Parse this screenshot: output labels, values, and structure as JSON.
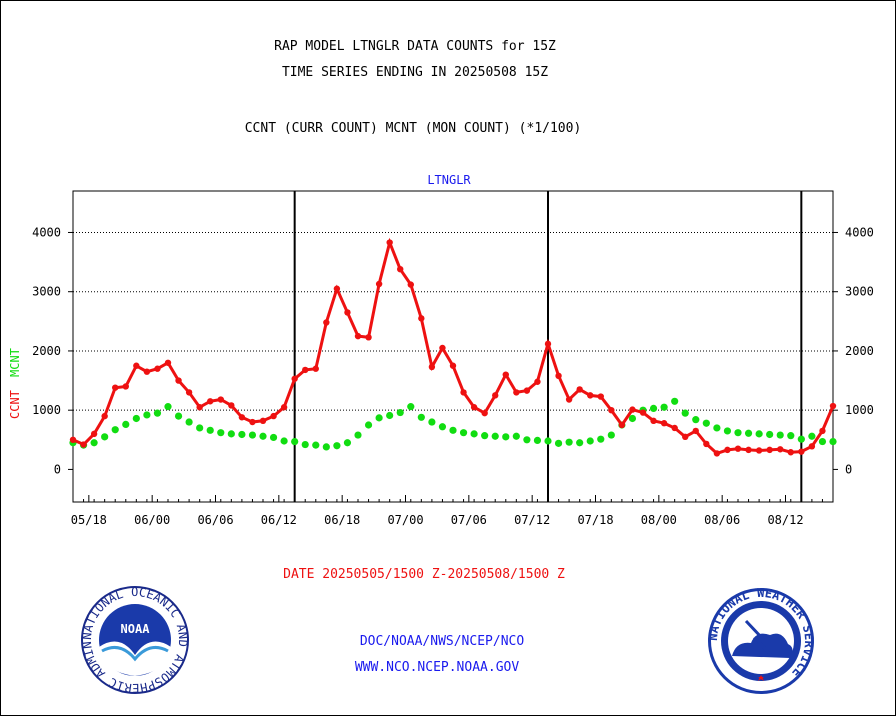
{
  "header": {
    "title_line1": "RAP MODEL LTNGLR DATA COUNTS for 15Z",
    "title_line2": "TIME SERIES ENDING IN 20250508 15Z",
    "subtitle": "CCNT (CURR COUNT) MCNT (MON COUNT) (*1/100)"
  },
  "footer": {
    "date_range": "DATE 20250505/1500 Z-20250508/1500 Z",
    "org_path": "DOC/NOAA/NWS/NCEP/NCO",
    "website": "WWW.NCO.NCEP.NOAA.GOV"
  },
  "logos": {
    "noaa": {
      "label": "NOAA",
      "ring_text": "NATIONAL OCEANIC AND ATMOSPHERIC ADMINISTRATION · U.S. DEPARTMENT OF COMMERCE"
    },
    "nws": {
      "ring_text": "NATIONAL WEATHER SERVICE"
    }
  },
  "chart_data": {
    "type": "line",
    "title": "LTNGLR",
    "ylabel_series": [
      "CCNT",
      "MCNT"
    ],
    "xlim": [
      0,
      72
    ],
    "ylim": [
      -550,
      4700
    ],
    "yticks": [
      0,
      1000,
      2000,
      3000,
      4000
    ],
    "xticks": [
      {
        "x": 1.5,
        "label": "05/18"
      },
      {
        "x": 7.5,
        "label": "06/00"
      },
      {
        "x": 13.5,
        "label": "06/06"
      },
      {
        "x": 19.5,
        "label": "06/12"
      },
      {
        "x": 25.5,
        "label": "06/18"
      },
      {
        "x": 31.5,
        "label": "07/00"
      },
      {
        "x": 37.5,
        "label": "07/06"
      },
      {
        "x": 43.5,
        "label": "07/12"
      },
      {
        "x": 49.5,
        "label": "07/18"
      },
      {
        "x": 55.5,
        "label": "08/00"
      },
      {
        "x": 61.5,
        "label": "08/06"
      },
      {
        "x": 67.5,
        "label": "08/12"
      }
    ],
    "day_dividers": [
      21,
      45,
      69
    ],
    "grid": true,
    "colors": {
      "CCNT": "#ee1111",
      "MCNT": "#11dd11"
    },
    "series": [
      {
        "name": "CCNT",
        "values": [
          500,
          420,
          600,
          900,
          1380,
          1400,
          1750,
          1650,
          1700,
          1800,
          1500,
          1300,
          1050,
          1150,
          1180,
          1080,
          880,
          800,
          820,
          900,
          1050,
          1530,
          1680,
          1700,
          2480,
          3050,
          2650,
          2250,
          2230,
          3130,
          3830,
          3380,
          3120,
          2550,
          1730,
          2050,
          1750,
          1300,
          1050,
          950,
          1250,
          1600,
          1300,
          1330,
          1480,
          2120,
          1580,
          1180,
          1350,
          1250,
          1230,
          1000,
          750,
          1010,
          960,
          820,
          780,
          700,
          550,
          650,
          430,
          270,
          330,
          350,
          330,
          320,
          330,
          340,
          290,
          300,
          390,
          650,
          1070
        ]
      },
      {
        "name": "MCNT",
        "values": [
          450,
          410,
          450,
          550,
          670,
          760,
          860,
          920,
          950,
          1060,
          900,
          800,
          700,
          660,
          620,
          600,
          590,
          580,
          560,
          540,
          480,
          470,
          420,
          410,
          380,
          400,
          450,
          580,
          750,
          870,
          910,
          960,
          1060,
          880,
          800,
          720,
          660,
          620,
          600,
          570,
          560,
          550,
          560,
          500,
          490,
          480,
          440,
          460,
          450,
          480,
          510,
          580,
          750,
          860,
          1000,
          1030,
          1050,
          1150,
          950,
          840,
          780,
          700,
          650,
          620,
          610,
          600,
          590,
          580,
          570,
          510,
          560,
          470,
          470
        ]
      }
    ]
  }
}
